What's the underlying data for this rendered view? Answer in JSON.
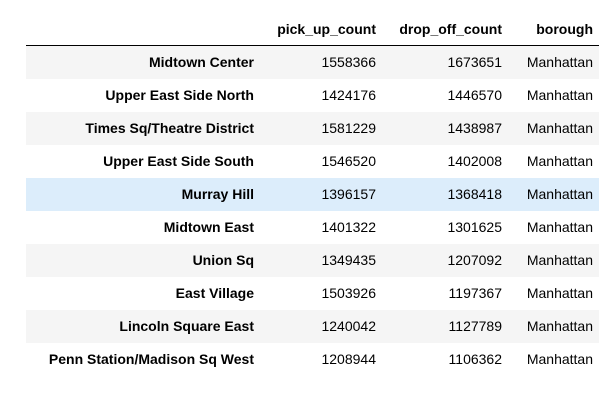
{
  "table": {
    "columns": [
      "pick_up_count",
      "drop_off_count",
      "borough"
    ],
    "highlight_row_index": 4,
    "highlight_color": "#dcedfb",
    "stripe_color": "#f5f5f5",
    "rows": [
      {
        "zone": "Midtown Center",
        "pick_up_count": "1558366",
        "drop_off_count": "1673651",
        "borough": "Manhattan"
      },
      {
        "zone": "Upper East Side North",
        "pick_up_count": "1424176",
        "drop_off_count": "1446570",
        "borough": "Manhattan"
      },
      {
        "zone": "Times Sq/Theatre District",
        "pick_up_count": "1581229",
        "drop_off_count": "1438987",
        "borough": "Manhattan"
      },
      {
        "zone": "Upper East Side South",
        "pick_up_count": "1546520",
        "drop_off_count": "1402008",
        "borough": "Manhattan"
      },
      {
        "zone": "Murray Hill",
        "pick_up_count": "1396157",
        "drop_off_count": "1368418",
        "borough": "Manhattan"
      },
      {
        "zone": "Midtown East",
        "pick_up_count": "1401322",
        "drop_off_count": "1301625",
        "borough": "Manhattan"
      },
      {
        "zone": "Union Sq",
        "pick_up_count": "1349435",
        "drop_off_count": "1207092",
        "borough": "Manhattan"
      },
      {
        "zone": "East Village",
        "pick_up_count": "1503926",
        "drop_off_count": "1197367",
        "borough": "Manhattan"
      },
      {
        "zone": "Lincoln Square East",
        "pick_up_count": "1240042",
        "drop_off_count": "1127789",
        "borough": "Manhattan"
      },
      {
        "zone": "Penn Station/Madison Sq West",
        "pick_up_count": "1208944",
        "drop_off_count": "1106362",
        "borough": "Manhattan"
      }
    ]
  }
}
